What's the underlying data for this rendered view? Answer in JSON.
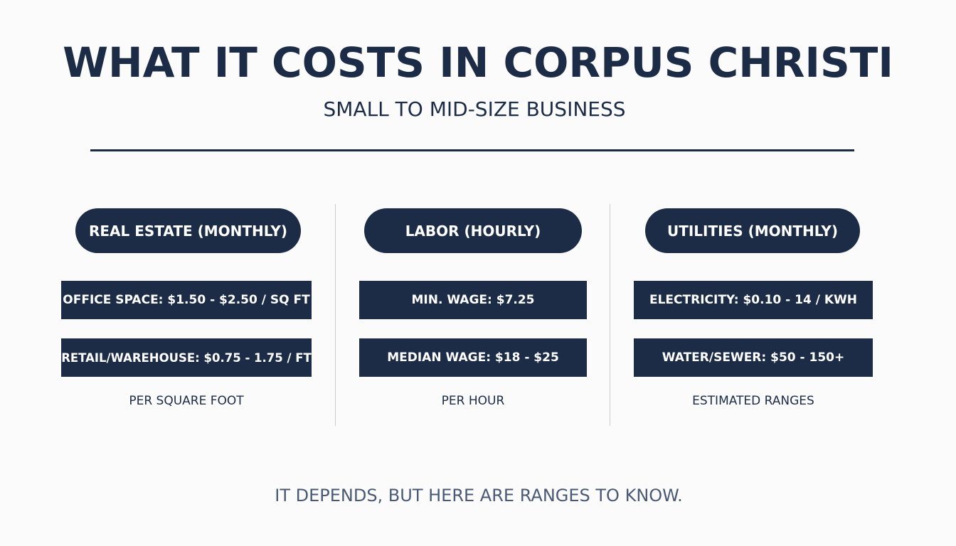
{
  "header": {
    "title": "WHAT IT COSTS IN CORPUS CHRISTI",
    "subtitle": "SMALL TO MID-SIZE BUSINESS"
  },
  "columns": [
    {
      "heading": "REAL ESTATE (MONTHLY)",
      "items": [
        "OFFICE SPACE: $1.50 - $2.50 / SQ FT",
        "RETAIL/WAREHOUSE: $0.75 - 1.75 / FT"
      ],
      "note": "PER SQUARE FOOT"
    },
    {
      "heading": "LABOR (HOURLY)",
      "items": [
        "MIN. WAGE: $7.25",
        "MEDIAN WAGE: $18 - $25"
      ],
      "note": "PER HOUR"
    },
    {
      "heading": "UTILITIES (MONTHLY)",
      "items": [
        "ELECTRICITY: $0.10 - 14 / KWH",
        "WATER/SEWER: $50 - 150+"
      ],
      "note": "ESTIMATED RANGES"
    }
  ],
  "footer": {
    "text": "IT DEPENDS, BUT HERE ARE RANGES TO KNOW."
  },
  "colors": {
    "navy": "#1c2c47",
    "background": "#fbfbfc",
    "divider": "#c9ccd1",
    "footer_text": "#4a5a74"
  }
}
